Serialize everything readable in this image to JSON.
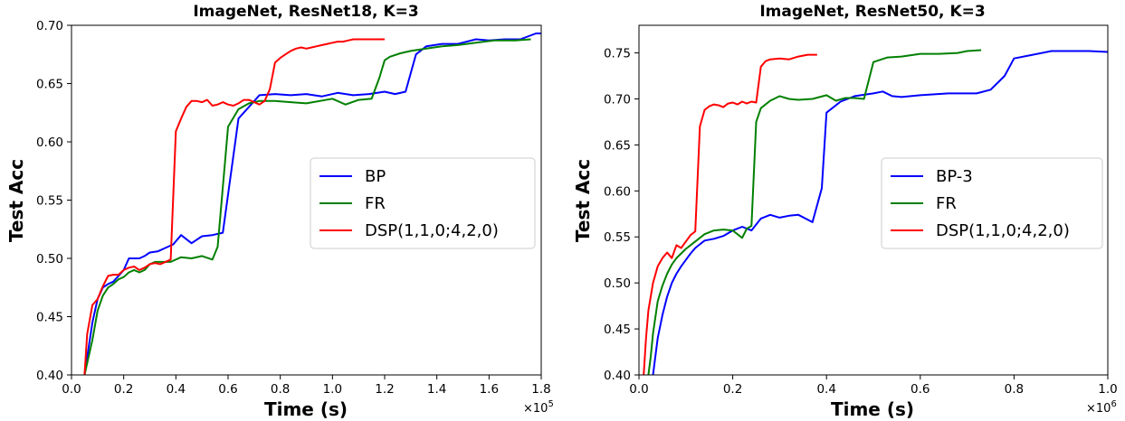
{
  "chart_data": [
    {
      "type": "line",
      "title": "ImageNet, ResNet18, K=3",
      "xlabel": "Time (s)",
      "ylabel": "Test Acc",
      "x_multiplier": "×10",
      "x_multiplier_exp": "5",
      "xlim": [
        0,
        1.8
      ],
      "ylim": [
        0.4,
        0.7
      ],
      "xticks": [
        0.0,
        0.2,
        0.4,
        0.6,
        0.8,
        1.0,
        1.2,
        1.4,
        1.6,
        1.8
      ],
      "xtick_labels": [
        "0.0",
        "0.2",
        "0.4",
        "0.6",
        "0.8",
        "1.0",
        "1.2",
        "1.4",
        "1.6",
        "1.8"
      ],
      "yticks": [
        0.4,
        0.45,
        0.5,
        0.55,
        0.6,
        0.65,
        0.7
      ],
      "ytick_labels": [
        "0.40",
        "0.45",
        "0.50",
        "0.55",
        "0.60",
        "0.65",
        "0.70"
      ],
      "legend_position": "center-right",
      "series": [
        {
          "name": "BP",
          "color": "#0000ff",
          "x": [
            0.05,
            0.08,
            0.1,
            0.12,
            0.14,
            0.16,
            0.18,
            0.2,
            0.22,
            0.24,
            0.26,
            0.28,
            0.3,
            0.33,
            0.36,
            0.39,
            0.42,
            0.46,
            0.5,
            0.54,
            0.58,
            0.64,
            0.68,
            0.72,
            0.78,
            0.84,
            0.9,
            0.96,
            1.02,
            1.08,
            1.14,
            1.2,
            1.24,
            1.28,
            1.32,
            1.36,
            1.42,
            1.48,
            1.55,
            1.6,
            1.66,
            1.72,
            1.78,
            1.8
          ],
          "y": [
            0.4,
            0.445,
            0.465,
            0.475,
            0.478,
            0.48,
            0.485,
            0.49,
            0.5,
            0.5,
            0.5,
            0.502,
            0.505,
            0.506,
            0.509,
            0.512,
            0.52,
            0.513,
            0.519,
            0.52,
            0.522,
            0.62,
            0.63,
            0.64,
            0.641,
            0.64,
            0.641,
            0.639,
            0.642,
            0.64,
            0.641,
            0.643,
            0.641,
            0.643,
            0.675,
            0.682,
            0.684,
            0.684,
            0.688,
            0.687,
            0.688,
            0.688,
            0.693,
            0.693
          ]
        },
        {
          "name": "FR",
          "color": "#008000",
          "x": [
            0.05,
            0.08,
            0.1,
            0.12,
            0.14,
            0.16,
            0.18,
            0.2,
            0.22,
            0.24,
            0.26,
            0.28,
            0.3,
            0.32,
            0.35,
            0.38,
            0.42,
            0.46,
            0.5,
            0.54,
            0.56,
            0.6,
            0.64,
            0.68,
            0.72,
            0.78,
            0.84,
            0.9,
            1.0,
            1.05,
            1.1,
            1.15,
            1.18,
            1.2,
            1.22,
            1.26,
            1.3,
            1.36,
            1.42,
            1.48,
            1.55,
            1.62,
            1.7,
            1.76
          ],
          "y": [
            0.4,
            0.43,
            0.455,
            0.468,
            0.475,
            0.478,
            0.482,
            0.484,
            0.488,
            0.49,
            0.488,
            0.49,
            0.495,
            0.497,
            0.497,
            0.497,
            0.501,
            0.5,
            0.502,
            0.499,
            0.51,
            0.613,
            0.628,
            0.633,
            0.635,
            0.635,
            0.634,
            0.633,
            0.637,
            0.632,
            0.636,
            0.637,
            0.655,
            0.67,
            0.673,
            0.676,
            0.678,
            0.68,
            0.682,
            0.683,
            0.685,
            0.687,
            0.687,
            0.688
          ]
        },
        {
          "name": "DSP(1,1,0;4,2,0)",
          "color": "#ff0000",
          "x": [
            0.05,
            0.06,
            0.08,
            0.1,
            0.12,
            0.14,
            0.16,
            0.18,
            0.2,
            0.22,
            0.24,
            0.26,
            0.28,
            0.3,
            0.32,
            0.34,
            0.36,
            0.38,
            0.4,
            0.42,
            0.44,
            0.46,
            0.48,
            0.5,
            0.52,
            0.54,
            0.56,
            0.58,
            0.6,
            0.62,
            0.64,
            0.66,
            0.68,
            0.7,
            0.72,
            0.74,
            0.76,
            0.78,
            0.8,
            0.82,
            0.84,
            0.86,
            0.88,
            0.9,
            0.92,
            0.94,
            0.96,
            0.98,
            1.0,
            1.02,
            1.04,
            1.06,
            1.08,
            1.1,
            1.12,
            1.14,
            1.16,
            1.18,
            1.2
          ],
          "y": [
            0.4,
            0.435,
            0.46,
            0.465,
            0.476,
            0.485,
            0.486,
            0.486,
            0.49,
            0.492,
            0.493,
            0.49,
            0.492,
            0.495,
            0.496,
            0.495,
            0.497,
            0.499,
            0.609,
            0.62,
            0.63,
            0.635,
            0.635,
            0.634,
            0.636,
            0.631,
            0.632,
            0.634,
            0.632,
            0.631,
            0.633,
            0.636,
            0.636,
            0.634,
            0.632,
            0.635,
            0.645,
            0.668,
            0.672,
            0.675,
            0.678,
            0.68,
            0.681,
            0.68,
            0.681,
            0.682,
            0.683,
            0.684,
            0.685,
            0.686,
            0.686,
            0.687,
            0.688,
            0.688,
            0.688,
            0.688,
            0.688,
            0.688,
            0.688
          ]
        }
      ]
    },
    {
      "type": "line",
      "title": "ImageNet, ResNet50, K=3",
      "xlabel": "Time (s)",
      "ylabel": "Test Acc",
      "x_multiplier": "×10",
      "x_multiplier_exp": "6",
      "xlim": [
        0,
        1.0
      ],
      "ylim": [
        0.4,
        0.78
      ],
      "xticks": [
        0.0,
        0.2,
        0.4,
        0.6,
        0.8,
        1.0
      ],
      "xtick_labels": [
        "0.0",
        "0.2",
        "0.4",
        "0.6",
        "0.8",
        "1.0"
      ],
      "yticks": [
        0.4,
        0.45,
        0.5,
        0.55,
        0.6,
        0.65,
        0.7,
        0.75
      ],
      "ytick_labels": [
        "0.40",
        "0.45",
        "0.50",
        "0.55",
        "0.60",
        "0.65",
        "0.70",
        "0.75"
      ],
      "legend_position": "center-right",
      "series": [
        {
          "name": "BP-3",
          "color": "#0000ff",
          "x": [
            0.03,
            0.035,
            0.04,
            0.05,
            0.06,
            0.07,
            0.08,
            0.09,
            0.1,
            0.11,
            0.12,
            0.13,
            0.14,
            0.16,
            0.18,
            0.2,
            0.22,
            0.24,
            0.26,
            0.28,
            0.3,
            0.32,
            0.34,
            0.37,
            0.39,
            0.4,
            0.43,
            0.46,
            0.5,
            0.52,
            0.54,
            0.56,
            0.6,
            0.63,
            0.66,
            0.7,
            0.72,
            0.75,
            0.78,
            0.8,
            0.84,
            0.88,
            0.92,
            0.96,
            1.0
          ],
          "y": [
            0.4,
            0.42,
            0.44,
            0.465,
            0.485,
            0.5,
            0.51,
            0.518,
            0.525,
            0.532,
            0.538,
            0.542,
            0.546,
            0.548,
            0.551,
            0.557,
            0.561,
            0.557,
            0.57,
            0.574,
            0.571,
            0.573,
            0.574,
            0.566,
            0.603,
            0.685,
            0.697,
            0.703,
            0.706,
            0.708,
            0.703,
            0.702,
            0.704,
            0.705,
            0.706,
            0.706,
            0.706,
            0.71,
            0.725,
            0.744,
            0.748,
            0.752,
            0.752,
            0.752,
            0.751
          ]
        },
        {
          "name": "FR",
          "color": "#008000",
          "x": [
            0.02,
            0.025,
            0.03,
            0.04,
            0.05,
            0.06,
            0.07,
            0.08,
            0.09,
            0.1,
            0.12,
            0.14,
            0.16,
            0.18,
            0.2,
            0.22,
            0.23,
            0.24,
            0.25,
            0.26,
            0.28,
            0.3,
            0.32,
            0.34,
            0.37,
            0.4,
            0.42,
            0.44,
            0.46,
            0.48,
            0.5,
            0.53,
            0.56,
            0.6,
            0.64,
            0.68,
            0.7,
            0.73
          ],
          "y": [
            0.4,
            0.42,
            0.445,
            0.48,
            0.497,
            0.51,
            0.52,
            0.527,
            0.532,
            0.537,
            0.545,
            0.553,
            0.557,
            0.558,
            0.557,
            0.549,
            0.559,
            0.562,
            0.675,
            0.69,
            0.698,
            0.703,
            0.7,
            0.699,
            0.7,
            0.704,
            0.698,
            0.701,
            0.701,
            0.7,
            0.74,
            0.745,
            0.746,
            0.749,
            0.749,
            0.75,
            0.752,
            0.753
          ]
        },
        {
          "name": "DSP(1,1,0;4,2,0)",
          "color": "#ff0000",
          "x": [
            0.01,
            0.015,
            0.02,
            0.03,
            0.04,
            0.05,
            0.06,
            0.07,
            0.08,
            0.09,
            0.1,
            0.11,
            0.12,
            0.13,
            0.14,
            0.15,
            0.16,
            0.17,
            0.18,
            0.19,
            0.2,
            0.21,
            0.22,
            0.23,
            0.24,
            0.25,
            0.26,
            0.27,
            0.28,
            0.3,
            0.32,
            0.34,
            0.36,
            0.38
          ],
          "y": [
            0.4,
            0.44,
            0.47,
            0.5,
            0.518,
            0.527,
            0.533,
            0.527,
            0.541,
            0.538,
            0.545,
            0.552,
            0.556,
            0.67,
            0.688,
            0.692,
            0.694,
            0.693,
            0.691,
            0.695,
            0.696,
            0.694,
            0.697,
            0.695,
            0.697,
            0.696,
            0.735,
            0.741,
            0.743,
            0.744,
            0.743,
            0.746,
            0.748,
            0.748
          ]
        }
      ]
    }
  ]
}
